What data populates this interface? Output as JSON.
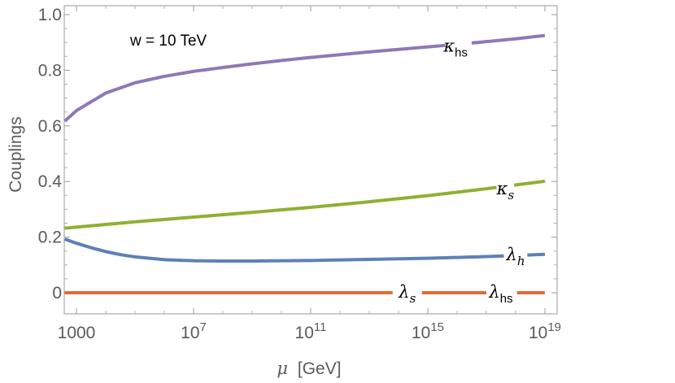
{
  "chart_data": {
    "type": "line",
    "title": "",
    "annotation": "w = 10 TeV",
    "xlabel_symbol": "μ",
    "xlabel_unit": "[GeV]",
    "ylabel": "Couplings",
    "x_scale": "log10",
    "xlim_log10": [
      2.4,
      19.2
    ],
    "ylim": [
      -0.08,
      1.02
    ],
    "x_ticks": [
      {
        "log10": 3,
        "label": "1000"
      },
      {
        "log10": 7,
        "base": "10",
        "exp": "7"
      },
      {
        "log10": 11,
        "base": "10",
        "exp": "11"
      },
      {
        "log10": 15,
        "base": "10",
        "exp": "15"
      },
      {
        "log10": 19,
        "base": "10",
        "exp": "19"
      }
    ],
    "y_ticks": [
      {
        "value": 0,
        "label": "0"
      },
      {
        "value": 0.2,
        "label": "0.2"
      },
      {
        "value": 0.4,
        "label": "0.4"
      },
      {
        "value": 0.6,
        "label": "0.6"
      },
      {
        "value": 0.8,
        "label": "0.8"
      },
      {
        "value": 1.0,
        "label": "1.0"
      }
    ],
    "series": [
      {
        "name": "kappa_hs",
        "label_main": "κ",
        "label_sub": "hs",
        "sub_italic": false,
        "color": "#8e79b5",
        "x_log10": [
          2.6,
          3,
          4,
          5,
          6,
          7,
          8,
          9,
          10,
          11,
          12,
          13,
          14,
          15,
          16,
          17,
          18,
          19
        ],
        "values": [
          0.617,
          0.655,
          0.718,
          0.755,
          0.778,
          0.796,
          0.81,
          0.823,
          0.835,
          0.846,
          0.856,
          0.866,
          0.875,
          0.884,
          0.893,
          0.903,
          0.913,
          0.925
        ],
        "gap_log10": [
          15.6,
          16.5
        ],
        "label_at": [
          15.95,
          0.885
        ]
      },
      {
        "name": "kappa_s",
        "label_main": "κ",
        "label_sub": "s",
        "sub_italic": true,
        "color": "#8fb032",
        "x_log10": [
          2.6,
          3,
          5,
          7,
          9,
          11,
          13,
          15,
          17,
          19
        ],
        "values": [
          0.232,
          0.236,
          0.255,
          0.272,
          0.289,
          0.307,
          0.327,
          0.349,
          0.374,
          0.401
        ],
        "gap_log10": [
          17.35,
          17.95
        ],
        "label_at": [
          17.65,
          0.372
        ]
      },
      {
        "name": "lambda_h",
        "label_main": "λ",
        "label_sub": "h",
        "sub_italic": true,
        "color": "#5e80b8",
        "x_log10": [
          2.6,
          3,
          3.5,
          4,
          4.5,
          5,
          6,
          7,
          8,
          9,
          10,
          11,
          12,
          13,
          14,
          15,
          16,
          17,
          18,
          19
        ],
        "values": [
          0.193,
          0.178,
          0.162,
          0.148,
          0.137,
          0.129,
          0.119,
          0.115,
          0.114,
          0.114,
          0.115,
          0.116,
          0.118,
          0.12,
          0.122,
          0.124,
          0.127,
          0.13,
          0.134,
          0.138
        ],
        "gap_log10": [
          17.6,
          18.4
        ],
        "label_at": [
          18.0,
          0.135
        ]
      },
      {
        "name": "lambda_s",
        "label_main": "λ",
        "label_sub": "s",
        "sub_italic": true,
        "color": "#e06b35",
        "x_log10": [
          2.6,
          19
        ],
        "values": [
          0.0,
          0.0
        ],
        "gap_log10": [
          13.8,
          14.8
        ],
        "label_at": [
          14.3,
          0.0
        ]
      },
      {
        "name": "lambda_hs",
        "label_main": "λ",
        "label_sub": "hs",
        "sub_italic": false,
        "color": "#e06b35",
        "x_log10": [
          2.6,
          19
        ],
        "values": [
          0.0,
          0.0
        ],
        "gap_log10": [
          17.0,
          18.05
        ],
        "label_at": [
          17.5,
          0.0
        ]
      }
    ]
  }
}
